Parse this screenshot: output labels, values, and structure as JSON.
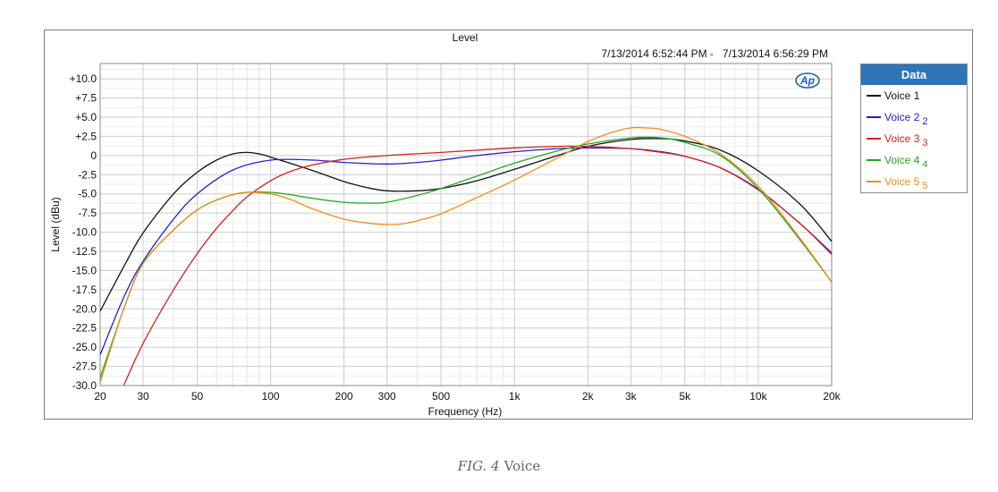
{
  "caption": {
    "fig": "FIG. 4",
    "text": "Voice"
  },
  "legend": {
    "title": "Data",
    "entries": [
      {
        "label": "Voice 1",
        "sub": "",
        "color": "#111111"
      },
      {
        "label": "Voice 2",
        "sub": "2",
        "color": "#2222cc"
      },
      {
        "label": "Voice 3",
        "sub": "3",
        "color": "#d42020"
      },
      {
        "label": "Voice 4",
        "sub": "4",
        "color": "#22a822"
      },
      {
        "label": "Voice 5",
        "sub": "5",
        "color": "#f08c1e"
      }
    ]
  },
  "logo_text": "Ap",
  "chart_data": {
    "type": "line",
    "title": "Level",
    "subtitle": "7/13/2014 6:52:44 PM -   7/13/2014 6:56:29 PM",
    "xlabel": "Frequency (Hz)",
    "ylabel": "Level (dBu)",
    "xscale": "log",
    "xlim": [
      20,
      20000
    ],
    "ylim": [
      -30,
      12
    ],
    "grid": true,
    "legend_position": "right",
    "x_ticks": [
      {
        "v": 20,
        "label": "20"
      },
      {
        "v": 30,
        "label": "30"
      },
      {
        "v": 50,
        "label": "50"
      },
      {
        "v": 100,
        "label": "100"
      },
      {
        "v": 200,
        "label": "200"
      },
      {
        "v": 300,
        "label": "300"
      },
      {
        "v": 500,
        "label": "500"
      },
      {
        "v": 1000,
        "label": "1k"
      },
      {
        "v": 2000,
        "label": "2k"
      },
      {
        "v": 3000,
        "label": "3k"
      },
      {
        "v": 5000,
        "label": "5k"
      },
      {
        "v": 10000,
        "label": "10k"
      },
      {
        "v": 20000,
        "label": "20k"
      }
    ],
    "y_ticks": [
      {
        "v": 10,
        "label": "+10.0"
      },
      {
        "v": 7.5,
        "label": "+7.5"
      },
      {
        "v": 5,
        "label": "+5.0"
      },
      {
        "v": 2.5,
        "label": "+2.5"
      },
      {
        "v": 0,
        "label": "0"
      },
      {
        "v": -2.5,
        "label": "-2.5"
      },
      {
        "v": -5,
        "label": "-5.0"
      },
      {
        "v": -7.5,
        "label": "-7.5"
      },
      {
        "v": -10,
        "label": "-10.0"
      },
      {
        "v": -12.5,
        "label": "-12.5"
      },
      {
        "v": -15,
        "label": "-15.0"
      },
      {
        "v": -17.5,
        "label": "-17.5"
      },
      {
        "v": -20,
        "label": "-20.0"
      },
      {
        "v": -22.5,
        "label": "-22.5"
      },
      {
        "v": -25,
        "label": "-25.0"
      },
      {
        "v": -27.5,
        "label": "-27.5"
      },
      {
        "v": -30,
        "label": "-30.0"
      }
    ],
    "series": [
      {
        "name": "Voice 1",
        "color": "#111111",
        "x": [
          20,
          25,
          30,
          40,
          50,
          60,
          70,
          80,
          90,
          100,
          150,
          200,
          250,
          300,
          400,
          500,
          700,
          1000,
          1500,
          2000,
          3000,
          4000,
          5000,
          7000,
          10000,
          15000,
          20000
        ],
        "y": [
          -20.3,
          -14.5,
          -10.1,
          -5,
          -2.2,
          -0.6,
          0.2,
          0.4,
          0.2,
          -0.2,
          -2,
          -3.4,
          -4.2,
          -4.6,
          -4.6,
          -4.3,
          -3.3,
          -1.8,
          0,
          1.2,
          2.1,
          2.2,
          1.9,
          0.7,
          -2,
          -6.5,
          -11.2
        ]
      },
      {
        "name": "Voice 2",
        "color": "#2222cc",
        "x": [
          20,
          25,
          30,
          40,
          50,
          70,
          100,
          150,
          200,
          300,
          400,
          500,
          700,
          1000,
          1500,
          2000,
          3000,
          4000,
          5000,
          7000,
          10000,
          15000,
          20000
        ],
        "y": [
          -26,
          -18.5,
          -13.8,
          -8.3,
          -5,
          -1.9,
          -0.6,
          -0.6,
          -0.9,
          -1.1,
          -0.9,
          -0.6,
          0,
          0.5,
          0.9,
          1,
          0.9,
          0.5,
          -0.1,
          -1.6,
          -4.4,
          -9,
          -12.7
        ]
      },
      {
        "name": "Voice 3",
        "color": "#d42020",
        "x": [
          25,
          30,
          40,
          50,
          60,
          70,
          80,
          100,
          120,
          150,
          200,
          300,
          500,
          700,
          1000,
          1500,
          2000,
          3000,
          4000,
          5000,
          7000,
          10000,
          15000,
          20000
        ],
        "y": [
          -30,
          -24.5,
          -17.5,
          -12.8,
          -9.5,
          -7.2,
          -5.4,
          -3.3,
          -2.1,
          -1.2,
          -0.5,
          0,
          0.4,
          0.7,
          1,
          1.2,
          1.2,
          0.9,
          0.4,
          -0.1,
          -1.6,
          -4.5,
          -9,
          -12.9
        ]
      },
      {
        "name": "Voice 4",
        "color": "#22a822",
        "x": [
          20,
          25,
          30,
          40,
          50,
          60,
          70,
          80,
          100,
          120,
          150,
          200,
          250,
          300,
          400,
          500,
          700,
          1000,
          1500,
          2000,
          3000,
          4000,
          5000,
          7000,
          10000,
          15000,
          20000
        ],
        "y": [
          -29,
          -20,
          -14.1,
          -9.7,
          -7.1,
          -5.8,
          -5.1,
          -4.8,
          -4.8,
          -5.1,
          -5.6,
          -6.1,
          -6.2,
          -6.1,
          -5.2,
          -4.3,
          -2.7,
          -1,
          0.6,
          1.5,
          2.3,
          2.3,
          1.7,
          0,
          -4.3,
          -11.2,
          -16.5
        ]
      },
      {
        "name": "Voice 5",
        "color": "#f08c1e",
        "x": [
          20,
          25,
          30,
          40,
          50,
          60,
          70,
          80,
          100,
          120,
          150,
          200,
          250,
          300,
          350,
          400,
          500,
          700,
          1000,
          1500,
          2000,
          2500,
          3000,
          3500,
          4000,
          5000,
          7000,
          10000,
          15000,
          20000
        ],
        "y": [
          -29.6,
          -20,
          -14.1,
          -9.7,
          -7.1,
          -5.8,
          -5.1,
          -4.8,
          -5,
          -5.7,
          -7,
          -8.3,
          -8.8,
          -9,
          -8.9,
          -8.5,
          -7.6,
          -5.5,
          -3.2,
          -0.3,
          1.8,
          3,
          3.6,
          3.6,
          3.4,
          2.5,
          0.2,
          -4,
          -11,
          -16.5
        ]
      }
    ]
  }
}
